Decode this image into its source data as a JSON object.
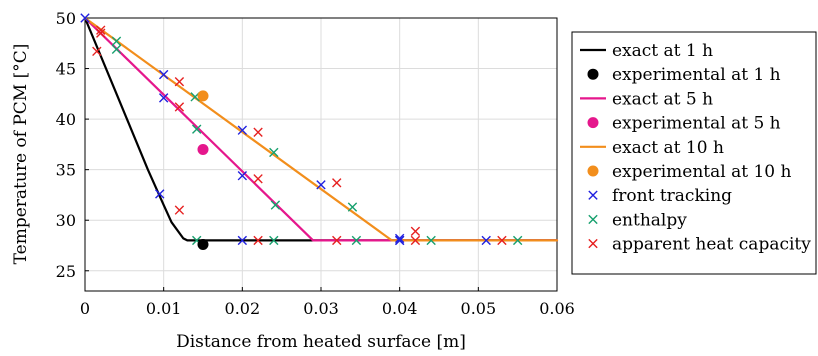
{
  "chart_data": {
    "type": "line",
    "title": "",
    "xlabel": "Distance from heated surface [m]",
    "ylabel": "Temperature of PCM [°C]",
    "xlim": [
      0,
      0.06
    ],
    "ylim": [
      23,
      50
    ],
    "x_ticks": [
      "0",
      "0.01",
      "0.02",
      "0.03",
      "0.04",
      "0.05",
      "0.06"
    ],
    "y_ticks": [
      "25",
      "30",
      "35",
      "40",
      "45",
      "50"
    ],
    "grid": true,
    "legend_position": "right",
    "series": [
      {
        "name": "exact at 1 h",
        "kind": "line",
        "color": "#000000",
        "x": [
          0,
          0.004,
          0.008,
          0.01,
          0.011,
          0.0125,
          0.013,
          0.014,
          0.06
        ],
        "y": [
          50,
          42.5,
          35.0,
          31.5,
          29.8,
          28.2,
          28.0,
          28.0,
          28.0
        ]
      },
      {
        "name": "experimental at 1 h",
        "kind": "dot",
        "color": "#000000",
        "x": [
          0.015
        ],
        "y": [
          27.6
        ]
      },
      {
        "name": "exact at 5 h",
        "kind": "line",
        "color": "#e5178c",
        "x": [
          0,
          0.029,
          0.06
        ],
        "y": [
          50,
          28.0,
          28.0
        ]
      },
      {
        "name": "experimental at 5 h",
        "kind": "dot",
        "color": "#e5178c",
        "x": [
          0.015
        ],
        "y": [
          37.0
        ]
      },
      {
        "name": "exact at 10 h",
        "kind": "line",
        "color": "#f28e1c",
        "x": [
          0,
          0.039,
          0.06
        ],
        "y": [
          50,
          28.0,
          28.0
        ]
      },
      {
        "name": "experimental at 10 h",
        "kind": "dot",
        "color": "#f28e1c",
        "x": [
          0.015
        ],
        "y": [
          42.3
        ]
      },
      {
        "name": "front tracking",
        "kind": "cross",
        "color": "#2020e0",
        "x": [
          0,
          0.01,
          0.02,
          0.03,
          0.04,
          0.01,
          0.02,
          0.04,
          0.051,
          0.0095,
          0.02,
          0.04
        ],
        "y": [
          50,
          44.4,
          38.9,
          33.5,
          28.2,
          42.1,
          34.4,
          28.0,
          28.0,
          32.6,
          28.0,
          28.0
        ]
      },
      {
        "name": "enthalpy",
        "kind": "cross",
        "color": "#17a06e",
        "x": [
          0.004,
          0.014,
          0.024,
          0.034,
          0.044,
          0.004,
          0.0142,
          0.0242,
          0.0345,
          0.055,
          0.0142,
          0.024
        ],
        "y": [
          47.7,
          42.2,
          36.7,
          31.3,
          28.0,
          46.9,
          39.0,
          31.5,
          28.0,
          28.0,
          28.0,
          28.0
        ]
      },
      {
        "name": "apparent heat capacity",
        "kind": "cross",
        "color": "#e62020",
        "x": [
          0.002,
          0.012,
          0.022,
          0.032,
          0.042,
          0.002,
          0.012,
          0.022,
          0.032,
          0.053,
          0.0015,
          0.012,
          0.022,
          0.042
        ],
        "y": [
          48.8,
          43.7,
          38.7,
          33.7,
          28.9,
          48.5,
          41.2,
          34.1,
          28.0,
          28.0,
          46.7,
          31.0,
          28.0,
          28.0
        ]
      }
    ]
  }
}
